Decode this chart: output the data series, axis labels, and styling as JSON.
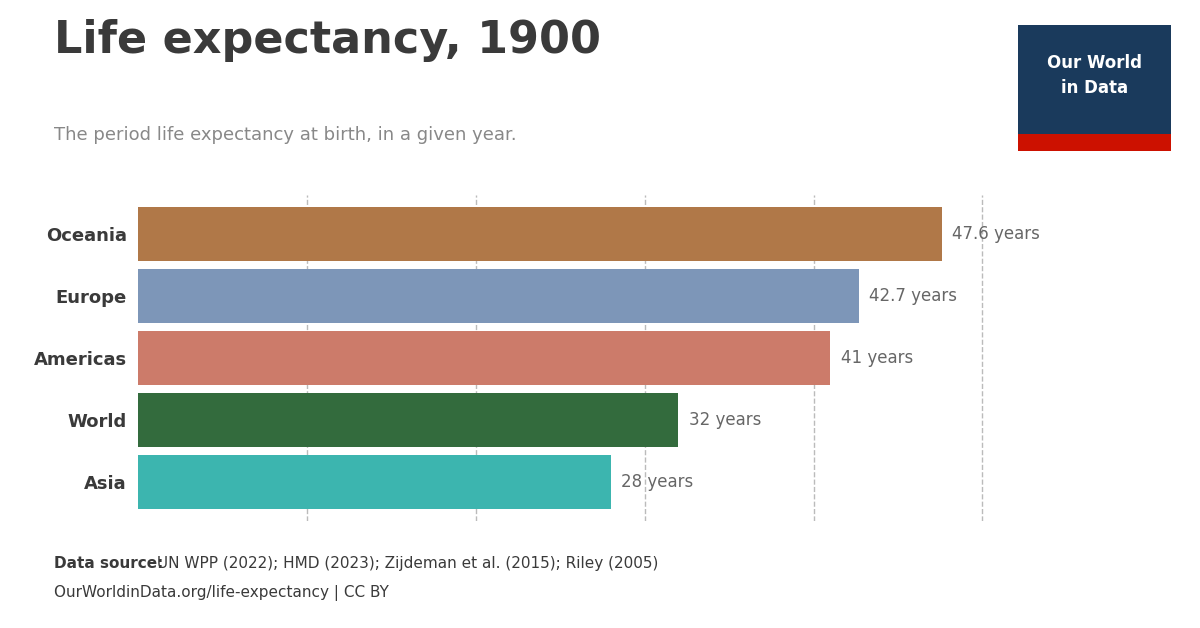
{
  "title": "Life expectancy, 1900",
  "subtitle": "The period life expectancy at birth, in a given year.",
  "categories": [
    "Asia",
    "World",
    "Americas",
    "Europe",
    "Oceania"
  ],
  "values": [
    28,
    32,
    41,
    42.7,
    47.6
  ],
  "labels": [
    "28 years",
    "32 years",
    "41 years",
    "42.7 years",
    "47.6 years"
  ],
  "bar_colors": [
    "#3cb5af",
    "#336b3d",
    "#cc7b6a",
    "#7d96b8",
    "#b07848"
  ],
  "background_color": "#ffffff",
  "title_color": "#3a3a3a",
  "subtitle_color": "#888888",
  "label_color": "#666666",
  "ytick_color": "#3a3a3a",
  "grid_color": "#bbbbbb",
  "xlim": [
    0,
    54
  ],
  "footer_bold": "Data source:",
  "footer_text": " UN WPP (2022); HMD (2023); Zijdeman et al. (2015); Riley (2005)",
  "footer_line2": "OurWorldinData.org/life-expectancy | CC BY",
  "owid_box_color": "#1a3a5c",
  "owid_red_color": "#cc1100",
  "owid_text": "Our World\nin Data",
  "grid_ticks": [
    10,
    20,
    30,
    40,
    50
  ]
}
